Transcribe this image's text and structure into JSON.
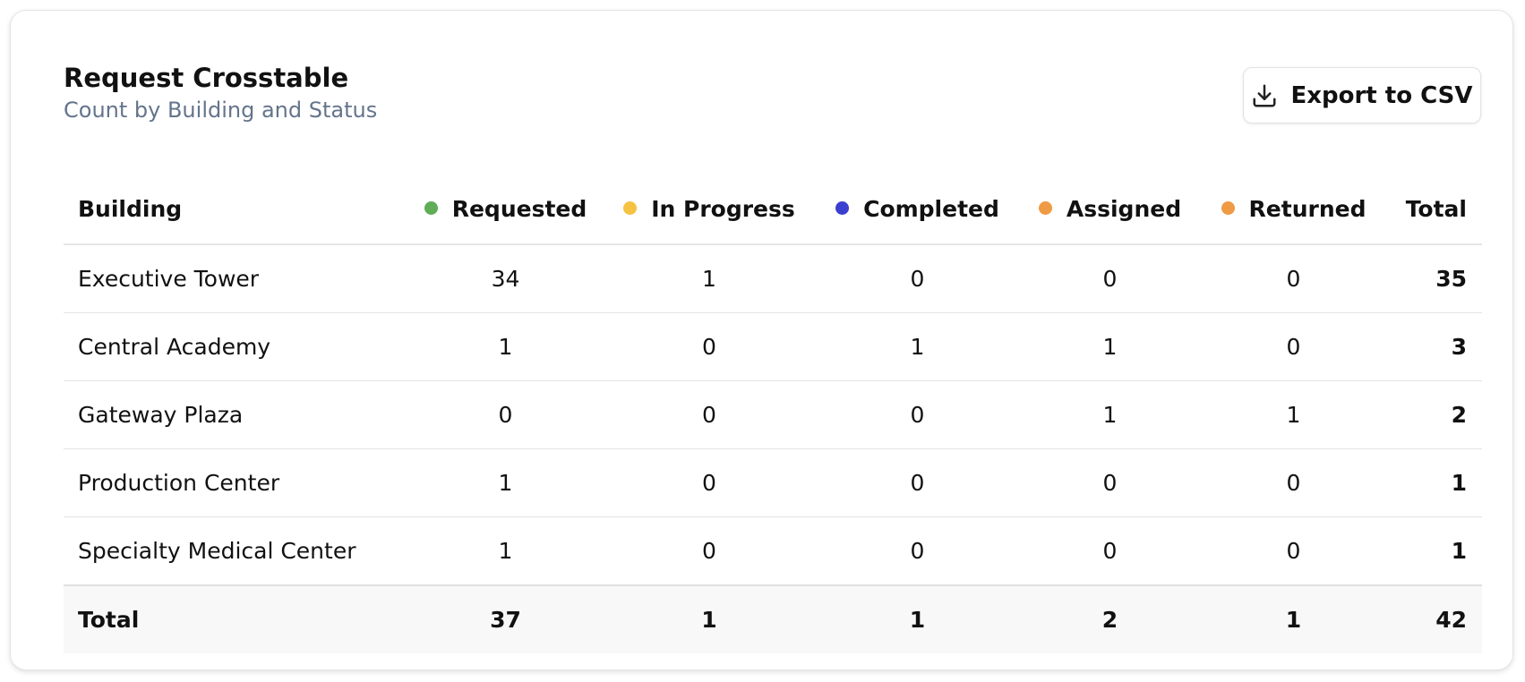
{
  "header": {
    "title": "Request Crosstable",
    "subtitle": "Count by Building and Status"
  },
  "export_button": "Export to CSV",
  "table": {
    "columns": [
      {
        "label": "Building"
      },
      {
        "label": "Requested",
        "color": "#5fad56"
      },
      {
        "label": "In Progress",
        "color": "#f5c242"
      },
      {
        "label": "Completed",
        "color": "#3a3fd0"
      },
      {
        "label": "Assigned",
        "color": "#ef9a45"
      },
      {
        "label": "Returned",
        "color": "#ef9a45"
      },
      {
        "label": "Total"
      }
    ],
    "rows": [
      [
        "Executive Tower",
        34,
        1,
        0,
        0,
        0,
        35
      ],
      [
        "Central Academy",
        1,
        0,
        1,
        1,
        0,
        3
      ],
      [
        "Gateway Plaza",
        0,
        0,
        0,
        1,
        1,
        2
      ],
      [
        "Production Center",
        1,
        0,
        0,
        0,
        0,
        1
      ],
      [
        "Specialty Medical Center",
        1,
        0,
        0,
        0,
        0,
        1
      ]
    ],
    "total_row": [
      "Total",
      37,
      1,
      1,
      2,
      1,
      42
    ]
  }
}
